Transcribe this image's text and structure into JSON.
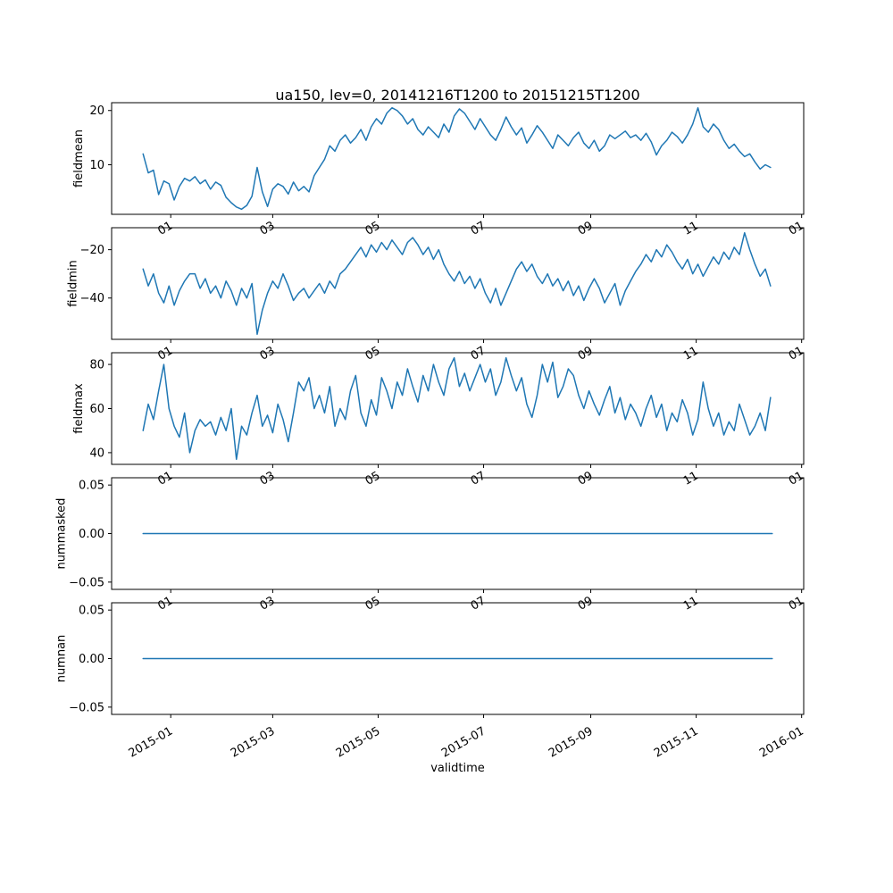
{
  "figure": {
    "title": "ua150, lev=0, 20141216T1200 to 20151215T1200",
    "xlabel": "validtime",
    "background": "#ffffff",
    "line_color": "#1f77b4",
    "axis_color": "#000000"
  },
  "chart_data": {
    "type": "line",
    "title": "ua150, lev=0, 20141216T1200 to 20151215T1200",
    "xlabel": "validtime",
    "legend": "none",
    "grid": false,
    "x_axis": {
      "xlim_days": [
        -18.2,
        382.2
      ],
      "tick_days": [
        16,
        75,
        136,
        197,
        259,
        320,
        381
      ],
      "tick_labels_full": [
        "2015-01",
        "2015-03",
        "2015-05",
        "2015-07",
        "2015-09",
        "2015-11",
        "2016-01"
      ],
      "tick_labels_short": [
        "01",
        "03",
        "05",
        "07",
        "09",
        "11",
        "01"
      ],
      "start_date": "2014-12-16",
      "end_date": "2015-12-15"
    },
    "x_days": [
      0,
      3,
      6,
      9,
      12,
      15,
      18,
      21,
      24,
      27,
      30,
      33,
      36,
      39,
      42,
      45,
      48,
      51,
      54,
      57,
      60,
      63,
      66,
      69,
      72,
      75,
      78,
      81,
      84,
      87,
      90,
      93,
      96,
      99,
      102,
      105,
      108,
      111,
      114,
      117,
      120,
      123,
      126,
      129,
      132,
      135,
      138,
      141,
      144,
      147,
      150,
      153,
      156,
      159,
      162,
      165,
      168,
      171,
      174,
      177,
      180,
      183,
      186,
      189,
      192,
      195,
      198,
      201,
      204,
      207,
      210,
      213,
      216,
      219,
      222,
      225,
      228,
      231,
      234,
      237,
      240,
      243,
      246,
      249,
      252,
      255,
      258,
      261,
      264,
      267,
      270,
      273,
      276,
      279,
      282,
      285,
      288,
      291,
      294,
      297,
      300,
      303,
      306,
      309,
      312,
      315,
      318,
      321,
      324,
      327,
      330,
      333,
      336,
      339,
      342,
      345,
      348,
      351,
      354,
      357,
      360,
      363
    ],
    "subplots": [
      {
        "name": "fieldmean",
        "ylabel": "fieldmean",
        "ylim": [
          0.86,
          21.44
        ],
        "yticks": [
          10,
          20
        ],
        "ytick_labels": [
          "10",
          "20"
        ],
        "values": [
          12.0,
          8.5,
          9.0,
          4.5,
          7.0,
          6.5,
          3.5,
          6.0,
          7.5,
          7.0,
          7.8,
          6.5,
          7.2,
          5.5,
          6.8,
          6.2,
          4.0,
          3.0,
          2.2,
          1.8,
          2.5,
          4.2,
          9.5,
          5.0,
          2.3,
          5.5,
          6.5,
          6.0,
          4.6,
          6.8,
          5.2,
          6.0,
          5.0,
          8.0,
          9.5,
          11.0,
          13.5,
          12.5,
          14.5,
          15.5,
          14.0,
          15.0,
          16.5,
          14.5,
          17.0,
          18.5,
          17.5,
          19.5,
          20.5,
          20.0,
          19.0,
          17.5,
          18.5,
          16.5,
          15.5,
          17.0,
          16.0,
          15.0,
          17.5,
          16.0,
          19.0,
          20.3,
          19.5,
          18.0,
          16.5,
          18.5,
          17.0,
          15.5,
          14.5,
          16.5,
          18.8,
          17.0,
          15.5,
          16.8,
          14.0,
          15.5,
          17.2,
          16.0,
          14.5,
          13.0,
          15.5,
          14.5,
          13.5,
          15.0,
          16.0,
          14.0,
          13.0,
          14.5,
          12.5,
          13.5,
          15.5,
          14.8,
          15.5,
          16.2,
          15.0,
          15.5,
          14.5,
          15.8,
          14.2,
          11.8,
          13.5,
          14.5,
          16.0,
          15.2,
          14.0,
          15.5,
          17.5,
          20.5,
          17.0,
          16.0,
          17.5,
          16.5,
          14.5,
          13.0,
          13.8,
          12.5,
          11.5,
          12.0,
          10.5,
          9.2,
          10.0,
          9.5
        ]
      },
      {
        "name": "fieldmin",
        "ylabel": "fieldmin",
        "ylim": [
          -57.1,
          -10.9
        ],
        "yticks": [
          -40,
          -20
        ],
        "ytick_labels": [
          "−40",
          "−20"
        ],
        "values": [
          -28,
          -35,
          -30,
          -38,
          -42,
          -35,
          -43,
          -37,
          -33,
          -30,
          -30,
          -36,
          -32,
          -38,
          -35,
          -40,
          -33,
          -37,
          -43,
          -36,
          -40,
          -34,
          -55,
          -45,
          -38,
          -33,
          -36,
          -30,
          -35,
          -41,
          -38,
          -36,
          -40,
          -37,
          -34,
          -38,
          -33,
          -36,
          -30,
          -28,
          -25,
          -22,
          -19,
          -23,
          -18,
          -21,
          -17,
          -20,
          -16,
          -19,
          -22,
          -17,
          -15,
          -18,
          -22,
          -19,
          -24,
          -20,
          -26,
          -30,
          -33,
          -29,
          -34,
          -31,
          -36,
          -32,
          -38,
          -42,
          -36,
          -43,
          -38,
          -33,
          -28,
          -25,
          -29,
          -26,
          -31,
          -34,
          -30,
          -35,
          -32,
          -37,
          -33,
          -39,
          -35,
          -41,
          -36,
          -32,
          -36,
          -42,
          -38,
          -34,
          -43,
          -37,
          -33,
          -29,
          -26,
          -22,
          -25,
          -20,
          -23,
          -18,
          -21,
          -25,
          -28,
          -24,
          -30,
          -26,
          -31,
          -27,
          -23,
          -26,
          -21,
          -24,
          -19,
          -22,
          -13,
          -20,
          -26,
          -31,
          -28,
          -35
        ]
      },
      {
        "name": "fieldmax",
        "ylabel": "fieldmax",
        "ylim": [
          34.7,
          85.3
        ],
        "yticks": [
          40,
          60,
          80
        ],
        "ytick_labels": [
          "40",
          "60",
          "80"
        ],
        "values": [
          50,
          62,
          55,
          68,
          80,
          60,
          52,
          47,
          58,
          40,
          50,
          55,
          52,
          54,
          48,
          56,
          50,
          60,
          37,
          52,
          48,
          58,
          66,
          52,
          57,
          49,
          62,
          55,
          45,
          58,
          72,
          68,
          74,
          60,
          66,
          58,
          70,
          52,
          60,
          55,
          68,
          75,
          58,
          52,
          64,
          57,
          74,
          68,
          60,
          72,
          66,
          78,
          70,
          63,
          75,
          68,
          80,
          72,
          66,
          78,
          83,
          70,
          76,
          68,
          74,
          80,
          72,
          78,
          66,
          72,
          83,
          75,
          68,
          74,
          62,
          56,
          66,
          80,
          72,
          81,
          65,
          70,
          78,
          75,
          66,
          60,
          68,
          62,
          57,
          64,
          70,
          58,
          65,
          55,
          62,
          58,
          52,
          60,
          66,
          56,
          62,
          50,
          58,
          54,
          64,
          58,
          48,
          55,
          72,
          60,
          52,
          58,
          48,
          54,
          50,
          62,
          55,
          48,
          52,
          58,
          50,
          65
        ]
      },
      {
        "name": "nummasked",
        "ylabel": "nummasked",
        "ylim": [
          -0.0575,
          0.0575
        ],
        "yticks": [
          -0.05,
          0.0,
          0.05
        ],
        "ytick_labels": [
          "−0.05",
          "0.00",
          "0.05"
        ],
        "x_days": [
          0,
          364
        ],
        "values": [
          0.0,
          0.0
        ]
      },
      {
        "name": "numnan",
        "ylabel": "numnan",
        "ylim": [
          -0.0575,
          0.0575
        ],
        "yticks": [
          -0.05,
          0.0,
          0.05
        ],
        "ytick_labels": [
          "−0.05",
          "0.00",
          "0.05"
        ],
        "x_days": [
          0,
          364
        ],
        "values": [
          0.0,
          0.0
        ]
      }
    ]
  }
}
